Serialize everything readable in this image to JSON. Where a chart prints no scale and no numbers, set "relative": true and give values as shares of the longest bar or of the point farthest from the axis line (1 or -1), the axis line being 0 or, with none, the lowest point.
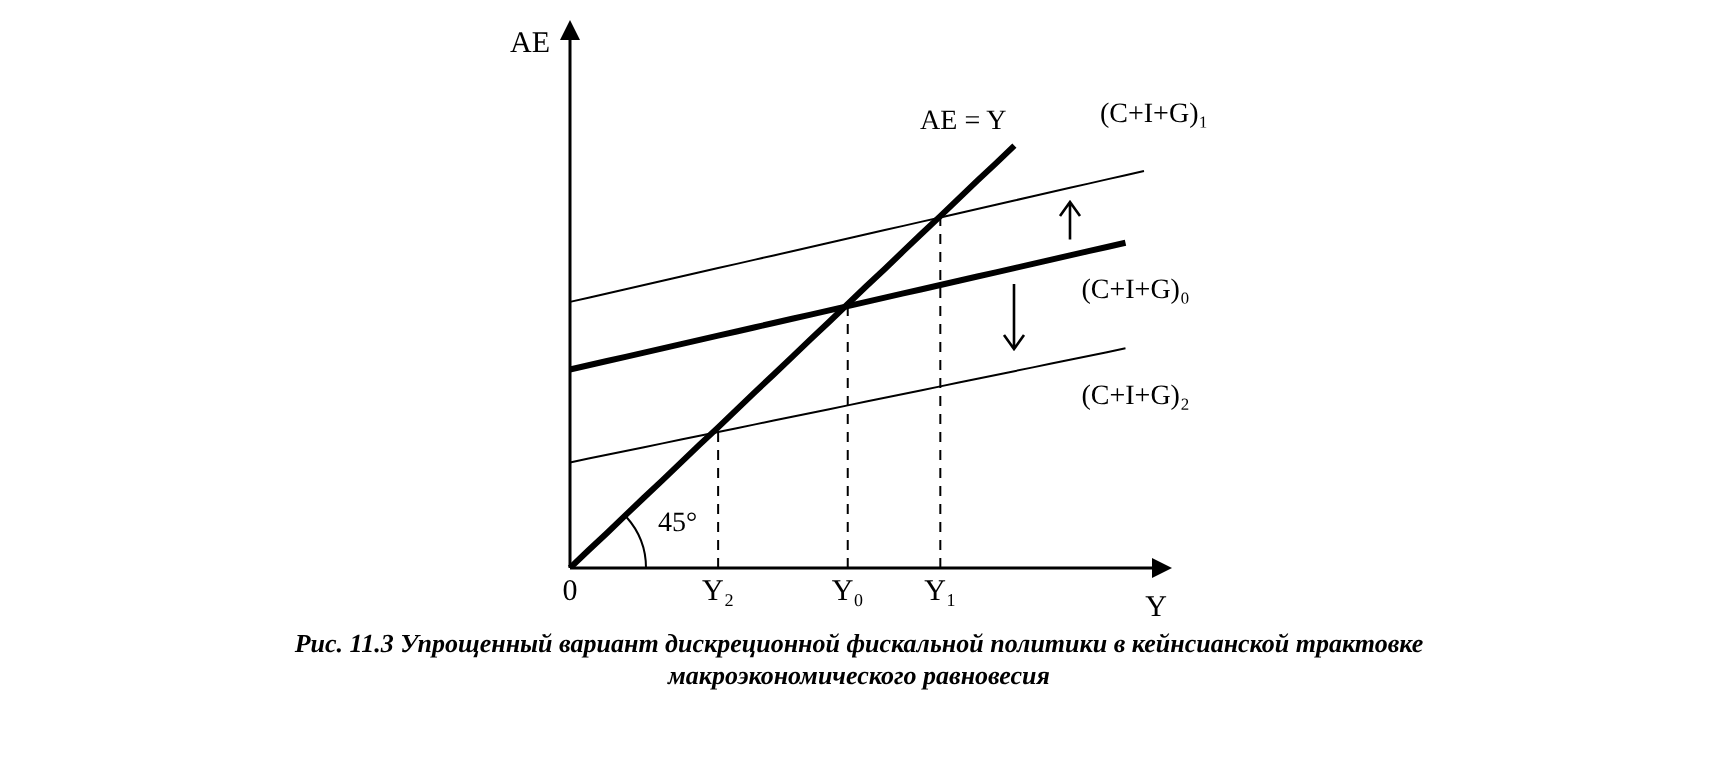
{
  "chart_data": {
    "type": "line",
    "relative": true,
    "title": "Рис. 11.3 Упрощенный вариант дискреционной фискальной политики в кейнсианской трактовке макроэкономического равновесия",
    "xlabel": "Y",
    "ylabel": "AE",
    "legend": false,
    "grid": false,
    "marker": "none",
    "line_style": "solid",
    "categories": [
      "0",
      null,
      null,
      null,
      null,
      null,
      null,
      null,
      "Y₂",
      null,
      null,
      null,
      null,
      null,
      null,
      "Y₀",
      null,
      null,
      null,
      null,
      "Y₁",
      null,
      null,
      null,
      null,
      null,
      null,
      null,
      null,
      null,
      null,
      null
    ],
    "series": [
      {
        "name": "AE = Y",
        "color": "#000000",
        "values": [
          0,
          0.042,
          0.083,
          0.125,
          0.167,
          0.208,
          0.25,
          0.292,
          0.333,
          0.375,
          0.417,
          0.458,
          0.5,
          0.542,
          0.583,
          0.625,
          0.667,
          0.708,
          0.75,
          0.792,
          0.833,
          0.875,
          0.917,
          0.958,
          1,
          null,
          null,
          null,
          null,
          null,
          null,
          null
        ]
      },
      {
        "name": "(C+I+G)₁",
        "color": "#000000",
        "values": [
          0.63,
          0.64,
          0.65,
          0.66,
          0.67,
          0.68,
          0.69,
          0.7,
          0.71,
          0.72,
          0.73,
          0.74,
          0.75,
          0.76,
          0.77,
          0.78,
          0.79,
          0.8,
          0.81,
          0.82,
          0.83,
          0.84,
          0.85,
          0.86,
          0.87,
          0.88,
          0.89,
          0.9,
          0.91,
          0.92,
          0.93,
          0.94
        ]
      },
      {
        "name": "(C+I+G)₀",
        "color": "#000000",
        "values": [
          0.47,
          0.48,
          0.49,
          0.5,
          0.51,
          0.52,
          0.53,
          0.54,
          0.55,
          0.56,
          0.57,
          0.58,
          0.59,
          0.6,
          0.61,
          0.62,
          0.63,
          0.64,
          0.65,
          0.66,
          0.67,
          0.68,
          0.69,
          0.7,
          0.71,
          0.72,
          0.73,
          0.74,
          0.75,
          0.76,
          0.77,
          null
        ]
      },
      {
        "name": "(C+I+G)₂",
        "color": "#000000",
        "values": [
          0.25,
          0.259,
          0.268,
          0.277,
          0.286,
          0.295,
          0.304,
          0.313,
          0.322,
          0.331,
          0.34,
          0.349,
          0.358,
          0.367,
          0.376,
          0.385,
          0.394,
          0.403,
          0.412,
          0.421,
          0.43,
          0.439,
          0.448,
          0.457,
          0.466,
          0.475,
          0.484,
          0.493,
          0.502,
          0.511,
          0.52,
          null
        ]
      }
    ],
    "ref_lines": [
      {
        "axis": "x",
        "value": "Y₂",
        "line_style": "dashed"
      },
      {
        "axis": "x",
        "value": "Y₀",
        "line_style": "dashed"
      },
      {
        "axis": "x",
        "value": "Y₁",
        "line_style": "dashed"
      }
    ],
    "annotations": [
      "45°"
    ]
  }
}
